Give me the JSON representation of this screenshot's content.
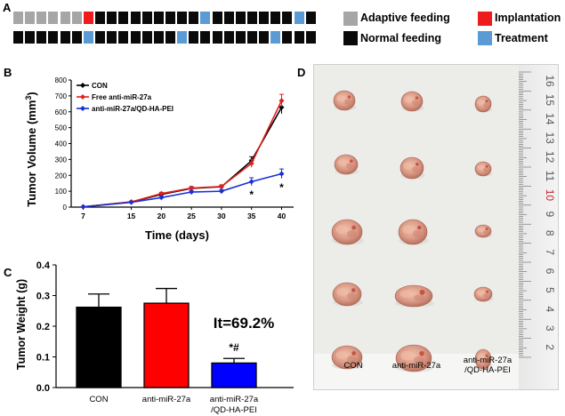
{
  "panel_a": {
    "letter": "A",
    "legend": [
      {
        "label": "Adaptive feeding",
        "color": "#a6a6a6"
      },
      {
        "label": "Implantation",
        "color": "#ee1c1c"
      },
      {
        "label": "Normal feeding",
        "color": "#0a0a0a"
      },
      {
        "label": "Treatment",
        "color": "#5b9bd5"
      }
    ],
    "row1": [
      "gray",
      "gray",
      "gray",
      "gray",
      "gray",
      "gray",
      "red",
      "black",
      "black",
      "black",
      "black",
      "black",
      "black",
      "black",
      "black",
      "black",
      "blue",
      "black",
      "black",
      "black",
      "black",
      "black",
      "black",
      "black",
      "blue",
      "black"
    ],
    "row2": [
      "black",
      "black",
      "black",
      "black",
      "black",
      "black",
      "blue",
      "black",
      "black",
      "black",
      "black",
      "black",
      "black",
      "black",
      "blue",
      "black",
      "black",
      "black",
      "black",
      "black",
      "black",
      "black",
      "blue",
      "black",
      "black",
      "black"
    ]
  },
  "panel_b": {
    "letter": "B",
    "chart_data": {
      "type": "line",
      "xlabel": "Time (days)",
      "ylabel": "Tumor Volume (mm",
      "ylabel_sup": "3",
      "ylabel_end": ")",
      "x": [
        7,
        15,
        20,
        25,
        30,
        35,
        40
      ],
      "xlim": [
        5,
        42
      ],
      "ylim": [
        0,
        800
      ],
      "yticks": [
        0,
        100,
        200,
        300,
        400,
        500,
        600,
        700,
        800
      ],
      "series": [
        {
          "name": "CON",
          "color": "#000000",
          "values": [
            2,
            32,
            80,
            118,
            128,
            292,
            628
          ],
          "errors": [
            2,
            5,
            8,
            10,
            10,
            25,
            40
          ]
        },
        {
          "name": "Free anti-miR-27a",
          "color": "#e02020",
          "values": [
            2,
            33,
            85,
            120,
            130,
            275,
            670
          ],
          "errors": [
            2,
            5,
            8,
            10,
            10,
            25,
            40
          ]
        },
        {
          "name": "anti-miR-27a/QD-HA-PEI",
          "color": "#1a2fd6",
          "values": [
            2,
            30,
            60,
            95,
            100,
            160,
            210
          ],
          "errors": [
            2,
            5,
            8,
            8,
            10,
            25,
            30
          ]
        }
      ],
      "annotations": [
        "*",
        "*"
      ]
    }
  },
  "panel_c": {
    "letter": "C",
    "chart_data": {
      "type": "bar",
      "ylabel": "Tumor Weight (g)",
      "categories": [
        "CON",
        "anti-miR-27a",
        "anti-miR-27a"
      ],
      "category_line2": [
        "",
        "",
        "/QD-HA-PEI"
      ],
      "values": [
        0.262,
        0.275,
        0.08
      ],
      "errors": [
        0.043,
        0.048,
        0.015
      ],
      "colors": [
        "#000000",
        "#ff0000",
        "#0000ff"
      ],
      "ylim": [
        0,
        0.4
      ],
      "yticks": [
        "0.0",
        "0.1",
        "0.2",
        "0.3",
        "0.4"
      ],
      "inhibition_text": "It=69.2%",
      "significance": "*#"
    }
  },
  "panel_d": {
    "letter": "D",
    "ruler_numbers": [
      "16",
      "15",
      "14",
      "13",
      "12",
      "11",
      "10",
      "9",
      "8",
      "7",
      "6",
      "5",
      "4",
      "3",
      "2"
    ],
    "columns": [
      {
        "line1": "CON",
        "line2": ""
      },
      {
        "line1": "anti-miR-27a",
        "line2": ""
      },
      {
        "line1": "anti-miR-27a",
        "line2": "/QD-HA-PEI"
      }
    ]
  }
}
